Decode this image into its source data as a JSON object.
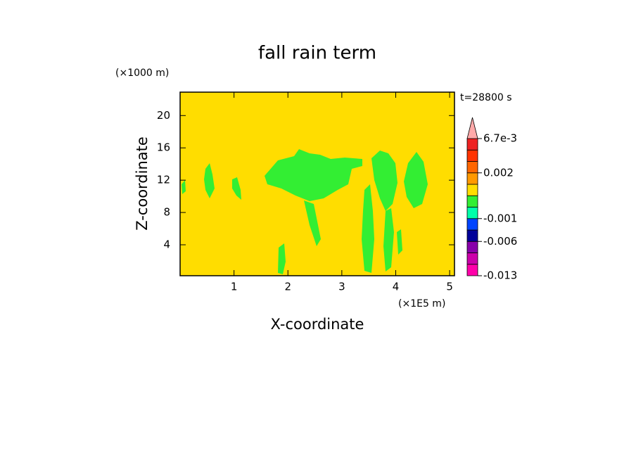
{
  "chart_data": {
    "type": "contour",
    "title": "fall rain term",
    "xlabel": "X-coordinate",
    "ylabel": "Z-coordinate",
    "x_unit": "(×1E5 m)",
    "y_unit": "(×1000 m)",
    "time_label": "t=28800 s",
    "xlim": [
      0,
      5.09
    ],
    "ylim": [
      0.17,
      22.9
    ],
    "xticks": [
      1,
      2,
      3,
      4,
      5
    ],
    "yticks": [
      4,
      8,
      12,
      16,
      20
    ],
    "colorbar": {
      "levels": [
        -0.013,
        -0.0107,
        -0.0083,
        -0.006,
        -0.0035,
        -0.001,
        -0.0005,
        0,
        0.001,
        0.002,
        0.0036,
        0.0051,
        0.0067
      ],
      "colors": [
        "#ff00aa",
        "#cc00aa",
        "#8800aa",
        "#000099",
        "#0044ff",
        "#00ffaa",
        "#33ee33",
        "#ffdd00",
        "#ff9900",
        "#ff6600",
        "#ff3300",
        "#ee2222"
      ],
      "extend_color": "#ffaaaa",
      "ticks": [
        {
          "value": -0.013,
          "label": "-0.013"
        },
        {
          "value": -0.006,
          "label": "-0.006"
        },
        {
          "value": -0.001,
          "label": "-0.001"
        },
        {
          "value": 0.002,
          "label": "0.002"
        },
        {
          "value": 0.0067,
          "label": "6.7e-3"
        }
      ]
    }
  }
}
